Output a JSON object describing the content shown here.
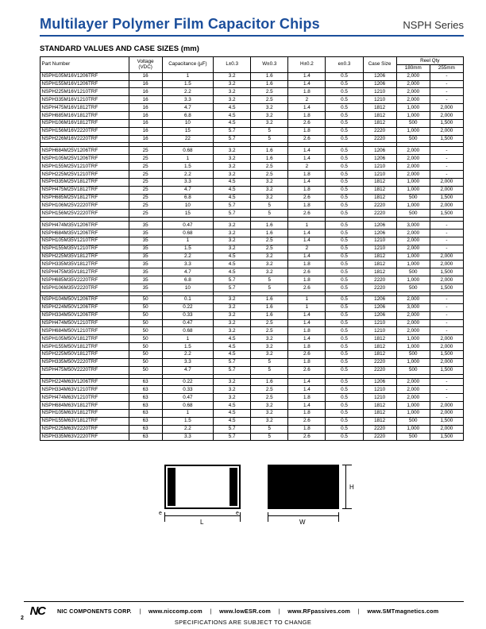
{
  "header": {
    "title": "Multilayer Polymer Film Capacitor Chips",
    "series": "NSPH Series",
    "title_color": "#1b4e9b"
  },
  "subheading": "STANDARD VALUES AND CASE SIZES (mm)",
  "table": {
    "columns": [
      "Part Number",
      "Voltage (VDC)",
      "Capacitance (µF)",
      "L±0.3",
      "W±0.3",
      "H±0.2",
      "e±0.3",
      "Case Size",
      "180mm",
      "255mm"
    ],
    "reel_header": "Reel Qty",
    "groups": [
      [
        [
          "NSPH105M16V1206TRF",
          "16",
          "1",
          "3.2",
          "1.6",
          "1.4",
          "0.5",
          "1206",
          "2,000",
          "-"
        ],
        [
          "NSPH155M16V1206TRF",
          "16",
          "1.5",
          "3.2",
          "1.6",
          "1.4",
          "0.5",
          "1206",
          "2,000",
          "-"
        ],
        [
          "NSPH225M16V1210TRF",
          "16",
          "2.2",
          "3.2",
          "2.5",
          "1.8",
          "0.5",
          "1210",
          "2,000",
          "-"
        ],
        [
          "NSPH335M16V1210TRF",
          "16",
          "3.3",
          "3.2",
          "2.5",
          "2",
          "0.5",
          "1210",
          "2,000",
          "-"
        ],
        [
          "NSPH475M16V1812TRF",
          "16",
          "4.7",
          "4.5",
          "3.2",
          "1.4",
          "0.5",
          "1812",
          "1,000",
          "2,000"
        ],
        [
          "NSPH685M16V1812TRF",
          "16",
          "6.8",
          "4.5",
          "3.2",
          "1.8",
          "0.5",
          "1812",
          "1,000",
          "2,000"
        ],
        [
          "NSPH106M16V1812TRF",
          "16",
          "10",
          "4.5",
          "3.2",
          "2.6",
          "0.5",
          "1812",
          "500",
          "1,500"
        ],
        [
          "NSPH156M16V2220TRF",
          "16",
          "15",
          "5.7",
          "5",
          "1.8",
          "0.5",
          "2220",
          "1,000",
          "2,000"
        ],
        [
          "NSPH226M16V2220TRF",
          "16",
          "22",
          "5.7",
          "5",
          "2.6",
          "0.5",
          "2220",
          "500",
          "1,500"
        ]
      ],
      [
        [
          "NSPH684M25V1206TRF",
          "25",
          "0.68",
          "3.2",
          "1.6",
          "1.4",
          "0.5",
          "1206",
          "2,000",
          "-"
        ],
        [
          "NSPH105M25V1206TRF",
          "25",
          "1",
          "3.2",
          "1.6",
          "1.4",
          "0.5",
          "1206",
          "2,000",
          "-"
        ],
        [
          "NSPH155M25V1210TRF",
          "25",
          "1.5",
          "3.2",
          "2.5",
          "2",
          "0.5",
          "1210",
          "2,000",
          "-"
        ],
        [
          "NSPH225M25V1210TRF",
          "25",
          "2.2",
          "3.2",
          "2.5",
          "1.8",
          "0.5",
          "1210",
          "2,000",
          "-"
        ],
        [
          "NSPH335M25V1812TRF",
          "25",
          "3.3",
          "4.5",
          "3.2",
          "1.4",
          "0.5",
          "1812",
          "1,000",
          "2,000"
        ],
        [
          "NSPH475M25V1812TRF",
          "25",
          "4.7",
          "4.5",
          "3.2",
          "1.8",
          "0.5",
          "1812",
          "1,000",
          "2,000"
        ],
        [
          "NSPH685M25V1812TRF",
          "25",
          "6.8",
          "4.5",
          "3.2",
          "2.6",
          "0.5",
          "1812",
          "500",
          "1,500"
        ],
        [
          "NSPH106M25V2220TRF",
          "25",
          "10",
          "5.7",
          "5",
          "1.8",
          "0.5",
          "2220",
          "1,000",
          "2,000"
        ],
        [
          "NSPH156M25V2220TRF",
          "25",
          "15",
          "5.7",
          "5",
          "2.6",
          "0.5",
          "2220",
          "500",
          "1,500"
        ]
      ],
      [
        [
          "NSPH474M35V1206TRF",
          "35",
          "0.47",
          "3.2",
          "1.6",
          "1",
          "0.5",
          "1206",
          "3,000",
          "-"
        ],
        [
          "NSPH684M35V1206TRF",
          "35",
          "0.68",
          "3.2",
          "1.6",
          "1.4",
          "0.5",
          "1206",
          "2,000",
          "-"
        ],
        [
          "NSPH105M35V1210TRF",
          "35",
          "1",
          "3.2",
          "2.5",
          "1.4",
          "0.5",
          "1210",
          "2,000",
          "-"
        ],
        [
          "NSPH155M35V1210TRF",
          "35",
          "1.5",
          "3.2",
          "2.5",
          "2",
          "0.5",
          "1210",
          "2,000",
          "-"
        ],
        [
          "NSPH225M35V1812TRF",
          "35",
          "2.2",
          "4.5",
          "3.2",
          "1.4",
          "0.5",
          "1812",
          "1,000",
          "2,000"
        ],
        [
          "NSPH335M35V1812TRF",
          "35",
          "3.3",
          "4.5",
          "3.2",
          "1.8",
          "0.5",
          "1812",
          "1,000",
          "2,000"
        ],
        [
          "NSPH475M35V1812TRF",
          "35",
          "4.7",
          "4.5",
          "3.2",
          "2.6",
          "0.5",
          "1812",
          "500",
          "1,500"
        ],
        [
          "NSPH685M35V2220TRF",
          "35",
          "6.8",
          "5.7",
          "5",
          "1.8",
          "0.5",
          "2220",
          "1,000",
          "2,000"
        ],
        [
          "NSPH106M35V2220TRF",
          "35",
          "10",
          "5.7",
          "5",
          "2.6",
          "0.5",
          "2220",
          "500",
          "1,500"
        ]
      ],
      [
        [
          "NSPH104M50V1206TRF",
          "50",
          "0.1",
          "3.2",
          "1.6",
          "1",
          "0.5",
          "1206",
          "2,000",
          "-"
        ],
        [
          "NSPH224M50V1206TRF",
          "50",
          "0.22",
          "3.2",
          "1.6",
          "1",
          "0.5",
          "1206",
          "3,000",
          "-"
        ],
        [
          "NSPH334M50V1206TRF",
          "50",
          "0.33",
          "3.2",
          "1.6",
          "1.4",
          "0.5",
          "1206",
          "2,000",
          "-"
        ],
        [
          "NSPH474M50V1210TRF",
          "50",
          "0.47",
          "3.2",
          "2.5",
          "1.4",
          "0.5",
          "1210",
          "2,000",
          "-"
        ],
        [
          "NSPH684M50V1210TRF",
          "50",
          "0.68",
          "3.2",
          "2.5",
          "1.8",
          "0.5",
          "1210",
          "2,000",
          "-"
        ],
        [
          "NSPH105M50V1812TRF",
          "50",
          "1",
          "4.5",
          "3.2",
          "1.4",
          "0.5",
          "1812",
          "1,000",
          "2,000"
        ],
        [
          "NSPH155M50V1812TRF",
          "50",
          "1.5",
          "4.5",
          "3.2",
          "1.8",
          "0.5",
          "1812",
          "1,000",
          "2,000"
        ],
        [
          "NSPH225M50V1812TRF",
          "50",
          "2.2",
          "4.5",
          "3.2",
          "2.6",
          "0.5",
          "1812",
          "500",
          "1,500"
        ],
        [
          "NSPH335M50V2220TRF",
          "50",
          "3.3",
          "5.7",
          "5",
          "1.8",
          "0.5",
          "2220",
          "1,000",
          "2,000"
        ],
        [
          "NSPH475M50V2220TRF",
          "50",
          "4.7",
          "5.7",
          "5",
          "2.6",
          "0.5",
          "2220",
          "500",
          "1,500"
        ]
      ],
      [
        [
          "NSPH224M63V1206TRF",
          "63",
          "0.22",
          "3.2",
          "1.6",
          "1.4",
          "0.5",
          "1206",
          "2,000",
          "-"
        ],
        [
          "NSPH334M63V1210TRF",
          "63",
          "0.33",
          "3.2",
          "2.5",
          "1.4",
          "0.5",
          "1210",
          "2,000",
          "-"
        ],
        [
          "NSPH474M63V1210TRF",
          "63",
          "0.47",
          "3.2",
          "2.5",
          "1.8",
          "0.5",
          "1210",
          "2,000",
          "-"
        ],
        [
          "NSPH684M63V1812TRF",
          "63",
          "0.68",
          "4.5",
          "3.2",
          "1.4",
          "0.5",
          "1812",
          "1,000",
          "2,000"
        ],
        [
          "NSPH105M63V1812TRF",
          "63",
          "1",
          "4.5",
          "3.2",
          "1.8",
          "0.5",
          "1812",
          "1,000",
          "2,000"
        ],
        [
          "NSPH155M63V1812TRF",
          "63",
          "1.5",
          "4.5",
          "3.2",
          "2.6",
          "0.5",
          "1812",
          "500",
          "1,500"
        ],
        [
          "NSPH225M63V2220TRF",
          "63",
          "2.2",
          "5.7",
          "5",
          "1.8",
          "0.5",
          "2220",
          "1,000",
          "2,000"
        ],
        [
          "NSPH335M63V2220TRF",
          "63",
          "3.3",
          "5.7",
          "5",
          "2.6",
          "0.5",
          "2220",
          "500",
          "1,500"
        ]
      ]
    ]
  },
  "diagram": {
    "labels": {
      "L": "L",
      "W": "W",
      "H": "H",
      "e": "e"
    }
  },
  "footer": {
    "corp": "NIC COMPONENTS CORP.",
    "links": [
      "www.niccomp.com",
      "www.lowESR.com",
      "www.RFpassives.com",
      "www.SMTmagnetics.com"
    ],
    "disclaimer": "SPECIFICATIONS ARE SUBJECT TO CHANGE",
    "page": "2",
    "logo_text": "NC"
  }
}
